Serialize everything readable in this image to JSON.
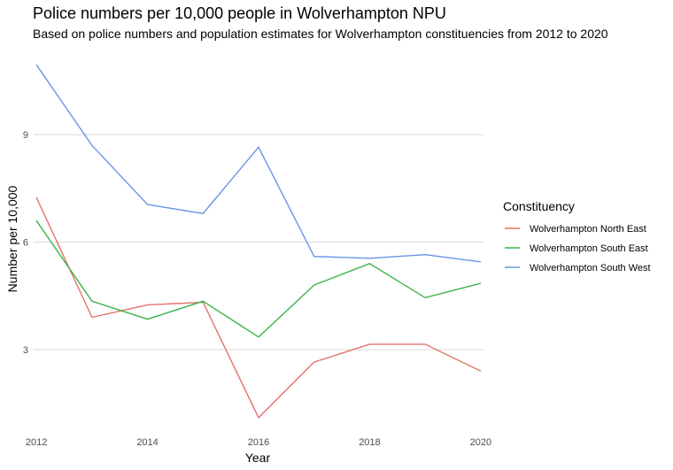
{
  "chart_data": {
    "type": "line",
    "title": "Police numbers per 10,000 people in Wolverhampton NPU",
    "subtitle": "Based on police numbers and population estimates for Wolverhampton constituencies from 2012 to 2020",
    "xlabel": "Year",
    "ylabel": "Number per 10,000",
    "x": [
      2012,
      2013,
      2014,
      2015,
      2016,
      2017,
      2018,
      2019,
      2020
    ],
    "xticks": [
      2012,
      2014,
      2016,
      2018,
      2020
    ],
    "yticks": [
      3,
      6,
      9
    ],
    "xlim": [
      2011.95,
      2020.05
    ],
    "ylim": [
      0.8,
      11.4
    ],
    "grid": "horizontal major",
    "legend": {
      "title": "Constituency",
      "position": "right"
    },
    "series": [
      {
        "name": "Wolverhampton North East",
        "color": "#e4716c",
        "values": [
          7.25,
          3.9,
          4.25,
          4.32,
          1.1,
          2.65,
          3.15,
          3.15,
          2.4
        ]
      },
      {
        "name": "Wolverhampton South East",
        "color": "#3bb54a",
        "values": [
          6.6,
          4.35,
          3.85,
          4.35,
          3.35,
          4.8,
          5.4,
          4.45,
          4.85
        ]
      },
      {
        "name": "Wolverhampton South West",
        "color": "#6a95e6",
        "values": [
          10.95,
          8.7,
          7.05,
          6.8,
          8.65,
          5.6,
          5.55,
          5.65,
          5.45
        ]
      }
    ]
  }
}
